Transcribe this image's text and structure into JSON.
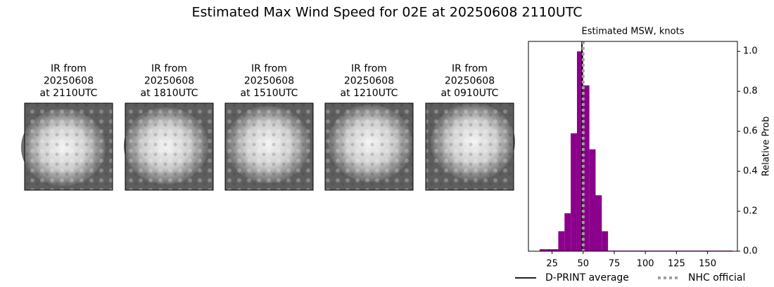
{
  "title": "Estimated Max Wind Speed for 02E at 20250608 2110UTC",
  "panels": [
    {
      "lines": [
        "IR from",
        "20250608",
        "at 2110UTC"
      ]
    },
    {
      "lines": [
        "IR from",
        "20250608",
        "at 1810UTC"
      ]
    },
    {
      "lines": [
        "IR from",
        "20250608",
        "at 1510UTC"
      ]
    },
    {
      "lines": [
        "IR from",
        "20250608",
        "at 1210UTC"
      ]
    },
    {
      "lines": [
        "IR from",
        "20250608",
        "at 0910UTC"
      ]
    }
  ],
  "chart_data": {
    "type": "histogram",
    "title": "Estimated MSW, knots",
    "y_label": "Relative Prob",
    "color": "#8b008b",
    "bins": [
      15,
      20,
      25,
      30,
      35,
      40,
      45,
      50,
      55,
      60,
      65,
      70,
      75,
      80,
      85,
      90,
      95,
      100,
      105,
      110,
      115,
      120,
      125,
      130,
      135,
      140,
      145,
      150,
      155,
      160,
      165,
      170
    ],
    "counts": [
      0.01,
      0.01,
      0.01,
      0.1,
      0.19,
      0.59,
      1.0,
      0.83,
      0.51,
      0.28,
      0.1,
      0.003,
      0.003,
      0.003,
      0.003,
      0.003,
      0.003,
      0.003,
      0.003,
      0.003,
      0.003,
      0.003,
      0.003,
      0.003,
      0.003,
      0.003,
      0.003,
      0.003,
      0.003,
      0.003,
      0.003
    ],
    "xlim": [
      6,
      174
    ],
    "xticks": [
      25,
      50,
      75,
      100,
      125,
      150
    ],
    "ylim": [
      0,
      1.05
    ],
    "yticks": [
      {
        "value": 0,
        "label": "0.0"
      },
      {
        "value": 0.2,
        "label": "0.2"
      },
      {
        "value": 0.4,
        "label": "0.4"
      },
      {
        "value": 0.6,
        "label": "0.6"
      },
      {
        "value": 0.8,
        "label": "0.8"
      },
      {
        "value": 1.0,
        "label": "1.0"
      }
    ],
    "lines": [
      {
        "name": "D-PRINT average",
        "value": 49,
        "color": "#000000",
        "dashed": false
      },
      {
        "name": "NHC official",
        "value": 50,
        "color": "#a0a0a0",
        "dashed": true
      }
    ]
  }
}
